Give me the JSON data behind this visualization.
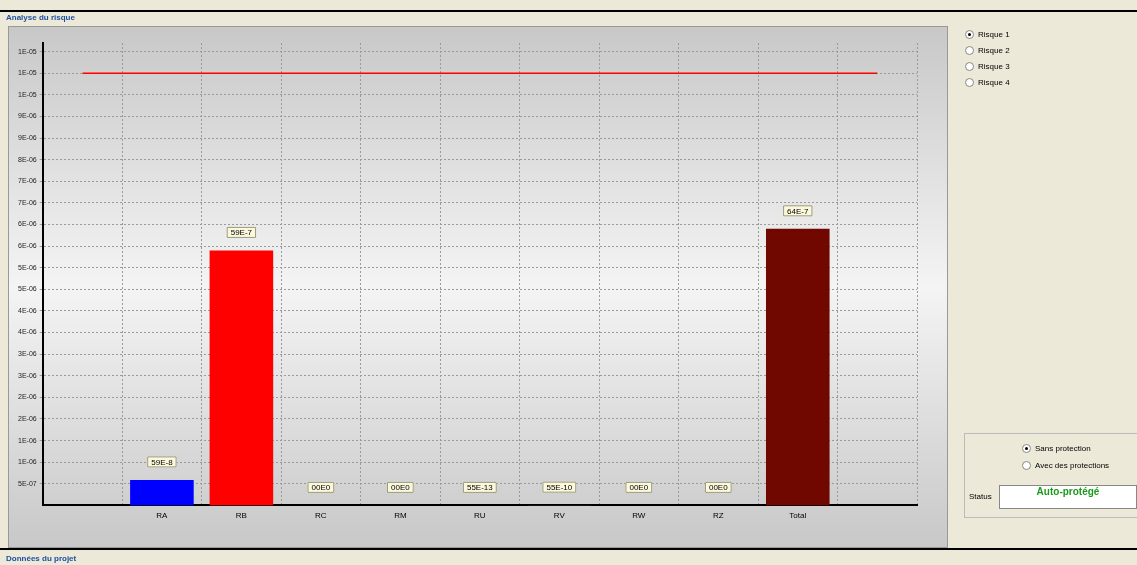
{
  "chart_data": {
    "type": "bar",
    "title": "Analyse du risque",
    "categories": [
      null,
      "RA",
      "RB",
      "RC",
      "RM",
      "RU",
      "RV",
      "RW",
      "RZ",
      "Total",
      null
    ],
    "values": [
      null,
      5.9e-07,
      5.9e-06,
      0,
      0,
      5.5e-12,
      5.5e-09,
      0,
      0,
      6.4e-06,
      null
    ],
    "value_labels": [
      null,
      "59E-8",
      "59E-7",
      "00E0",
      "00E0",
      "55E-13",
      "55E-10",
      "00E0",
      "00E0",
      "64E-7",
      null
    ],
    "colors": [
      "#808080",
      "#0000ff",
      "#ff0000",
      "#808080",
      "#808080",
      "#808080",
      "#808080",
      "#808080",
      "#808080",
      "#700800",
      "#808080"
    ],
    "ylim": [
      0,
      1.07e-05
    ],
    "yticks": [
      {
        "value": 5e-07,
        "label": "5E-07"
      },
      {
        "value": 1e-06,
        "label": "1E-06"
      },
      {
        "value": 1.5e-06,
        "label": "1E-06"
      },
      {
        "value": 2e-06,
        "label": "2E-06"
      },
      {
        "value": 2.5e-06,
        "label": "2E-06"
      },
      {
        "value": 3e-06,
        "label": "3E-06"
      },
      {
        "value": 3.5e-06,
        "label": "3E-06"
      },
      {
        "value": 4e-06,
        "label": "4E-06"
      },
      {
        "value": 4.5e-06,
        "label": "4E-06"
      },
      {
        "value": 5e-06,
        "label": "5E-06"
      },
      {
        "value": 5.5e-06,
        "label": "5E-06"
      },
      {
        "value": 6e-06,
        "label": "6E-06"
      },
      {
        "value": 6.5e-06,
        "label": "6E-06"
      },
      {
        "value": 7e-06,
        "label": "7E-06"
      },
      {
        "value": 7.5e-06,
        "label": "7E-06"
      },
      {
        "value": 8e-06,
        "label": "8E-06"
      },
      {
        "value": 8.5e-06,
        "label": "9E-06"
      },
      {
        "value": 9e-06,
        "label": "9E-06"
      },
      {
        "value": 9.5e-06,
        "label": "1E-05"
      },
      {
        "value": 1e-05,
        "label": "1E-05"
      },
      {
        "value": 1.05e-05,
        "label": "1E-05"
      }
    ],
    "ref_lines": [
      {
        "axis": "y",
        "value": 1e-05,
        "color": "#ff0000"
      }
    ],
    "grid": true,
    "legend": false,
    "annotations": [
      "Risque 1",
      "Risque 2",
      "Risque 3",
      "Risque 4",
      "Sans protection",
      "Avec des protections",
      "Status",
      "Auto-protégé",
      "Données du projet"
    ]
  }
}
